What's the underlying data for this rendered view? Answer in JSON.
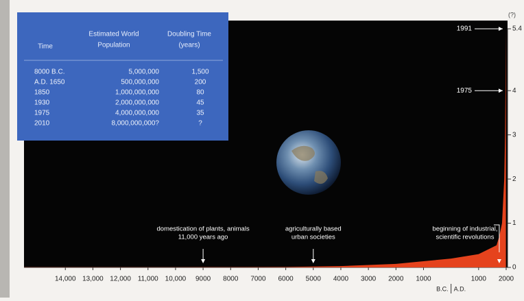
{
  "chart_data": {
    "type": "area",
    "x": [
      -15500,
      -12000,
      -10000,
      -9000,
      -8000,
      -6000,
      -4000,
      -2000,
      0,
      1000,
      1650,
      1750,
      1850,
      1930,
      1960,
      1975,
      1991
    ],
    "series": [
      {
        "color": "#e5431d",
        "values": [
          0.003,
          0.004,
          0.004,
          0.005,
          0.005,
          0.01,
          0.03,
          0.08,
          0.2,
          0.3,
          0.5,
          0.7,
          1.0,
          2.0,
          3.0,
          4.0,
          5.4
        ]
      }
    ],
    "xlim": [
      -15500,
      2050
    ],
    "ylim": [
      0,
      5.4
    ],
    "xticks": [
      {
        "value": -14000,
        "label": "14,000"
      },
      {
        "value": -13000,
        "label": "13,000"
      },
      {
        "value": -12000,
        "label": "12,000"
      },
      {
        "value": -11000,
        "label": "11,000"
      },
      {
        "value": -10000,
        "label": "10,000"
      },
      {
        "value": -9000,
        "label": "9000"
      },
      {
        "value": -8000,
        "label": "8000"
      },
      {
        "value": -7000,
        "label": "7000"
      },
      {
        "value": -6000,
        "label": "6000"
      },
      {
        "value": -5000,
        "label": "5000"
      },
      {
        "value": -4000,
        "label": "4000"
      },
      {
        "value": -3000,
        "label": "3000"
      },
      {
        "value": -2000,
        "label": "2000"
      },
      {
        "value": -1000,
        "label": "1000"
      },
      1000,
      2000
    ],
    "yticks": [
      0,
      1,
      2,
      3,
      4,
      5.4
    ],
    "y_top_label": "(?)",
    "era_labels": [
      "B.C.",
      "A.D."
    ],
    "annotations": [
      {
        "lines": [
          "domestication of plants, animals",
          "11,000 years ago"
        ],
        "x": -9000
      },
      {
        "lines": [
          "agriculturally based",
          "urban societies"
        ],
        "x": -5000
      },
      {
        "lines": [
          "beginning of industrial,",
          "scientific revolutions"
        ],
        "x": 1750
      }
    ],
    "point_labels": [
      {
        "text": "1991",
        "y": 5.4
      },
      {
        "text": "1975",
        "y": 4
      }
    ],
    "table": {
      "header": [
        [
          "Time"
        ],
        [
          "Estimated World",
          "Population"
        ],
        [
          "Doubling Time",
          "(years)"
        ]
      ],
      "rows": [
        [
          "8000 B.C.",
          "5,000,000",
          "1,500"
        ],
        [
          "A.D. 1650",
          "500,000,000",
          "200"
        ],
        [
          "1850",
          "1,000,000,000",
          "80"
        ],
        [
          "1930",
          "2,000,000,000",
          "45"
        ],
        [
          "1975",
          "4,000,000,000",
          "35"
        ],
        [
          "2010",
          "8,000,000,000?",
          "?"
        ]
      ]
    }
  }
}
